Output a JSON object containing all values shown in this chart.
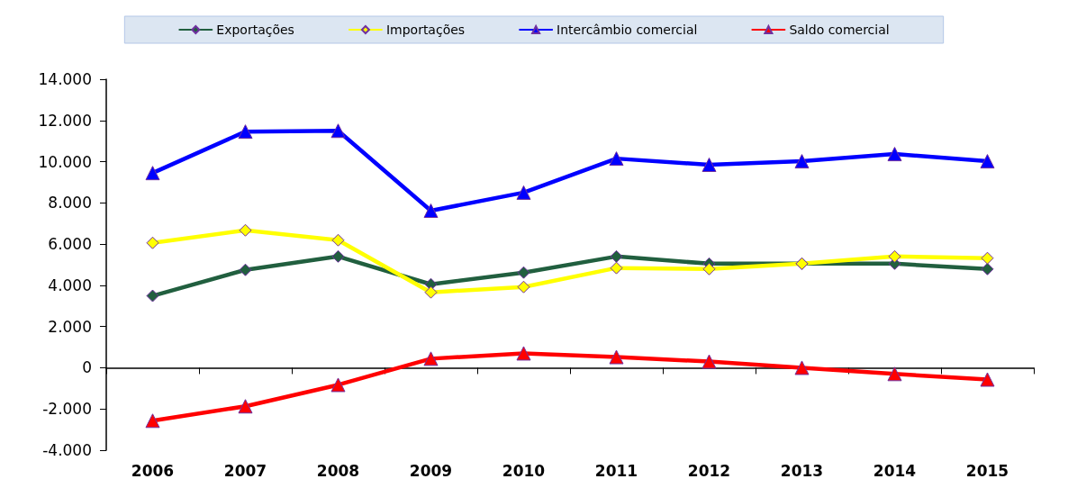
{
  "chart_data": {
    "type": "line",
    "categories": [
      "2006",
      "2007",
      "2008",
      "2009",
      "2010",
      "2011",
      "2012",
      "2013",
      "2014",
      "2015"
    ],
    "series": [
      {
        "name": "Exportações",
        "color": "#215f3f",
        "marker": "diamond",
        "values": [
          3490,
          4750,
          5400,
          4050,
          4620,
          5400,
          5050,
          5050,
          5050,
          4790
        ]
      },
      {
        "name": "Importações",
        "color": "#ffff00",
        "marker": "diamond",
        "values": [
          6060,
          6670,
          6190,
          3660,
          3920,
          4840,
          4790,
          5050,
          5400,
          5320
        ]
      },
      {
        "name": "Intercâmbio comercial",
        "color": "#0000ff",
        "marker": "triangle",
        "values": [
          9450,
          11460,
          11500,
          7620,
          8500,
          10150,
          9850,
          10020,
          10370,
          10020
        ]
      },
      {
        "name": "Saldo comercial",
        "color": "#ff0000",
        "marker": "triangle",
        "values": [
          -2570,
          -1870,
          -830,
          440,
          700,
          520,
          300,
          0,
          -300,
          -570
        ]
      }
    ],
    "ylim": [
      -4000,
      14000
    ],
    "yticks": [
      {
        "value": -4000,
        "label": "-4.000"
      },
      {
        "value": -2000,
        "label": "-2.000"
      },
      0,
      {
        "value": 2000,
        "label": "2.000"
      },
      {
        "value": 4000,
        "label": "4.000"
      },
      {
        "value": 6000,
        "label": "6.000"
      },
      {
        "value": 8000,
        "label": "8.000"
      },
      {
        "value": 10000,
        "label": "10.000"
      },
      {
        "value": 12000,
        "label": "12.000"
      },
      {
        "value": 14000,
        "label": "14.000"
      }
    ],
    "legend": "top",
    "line_style": "solid"
  }
}
